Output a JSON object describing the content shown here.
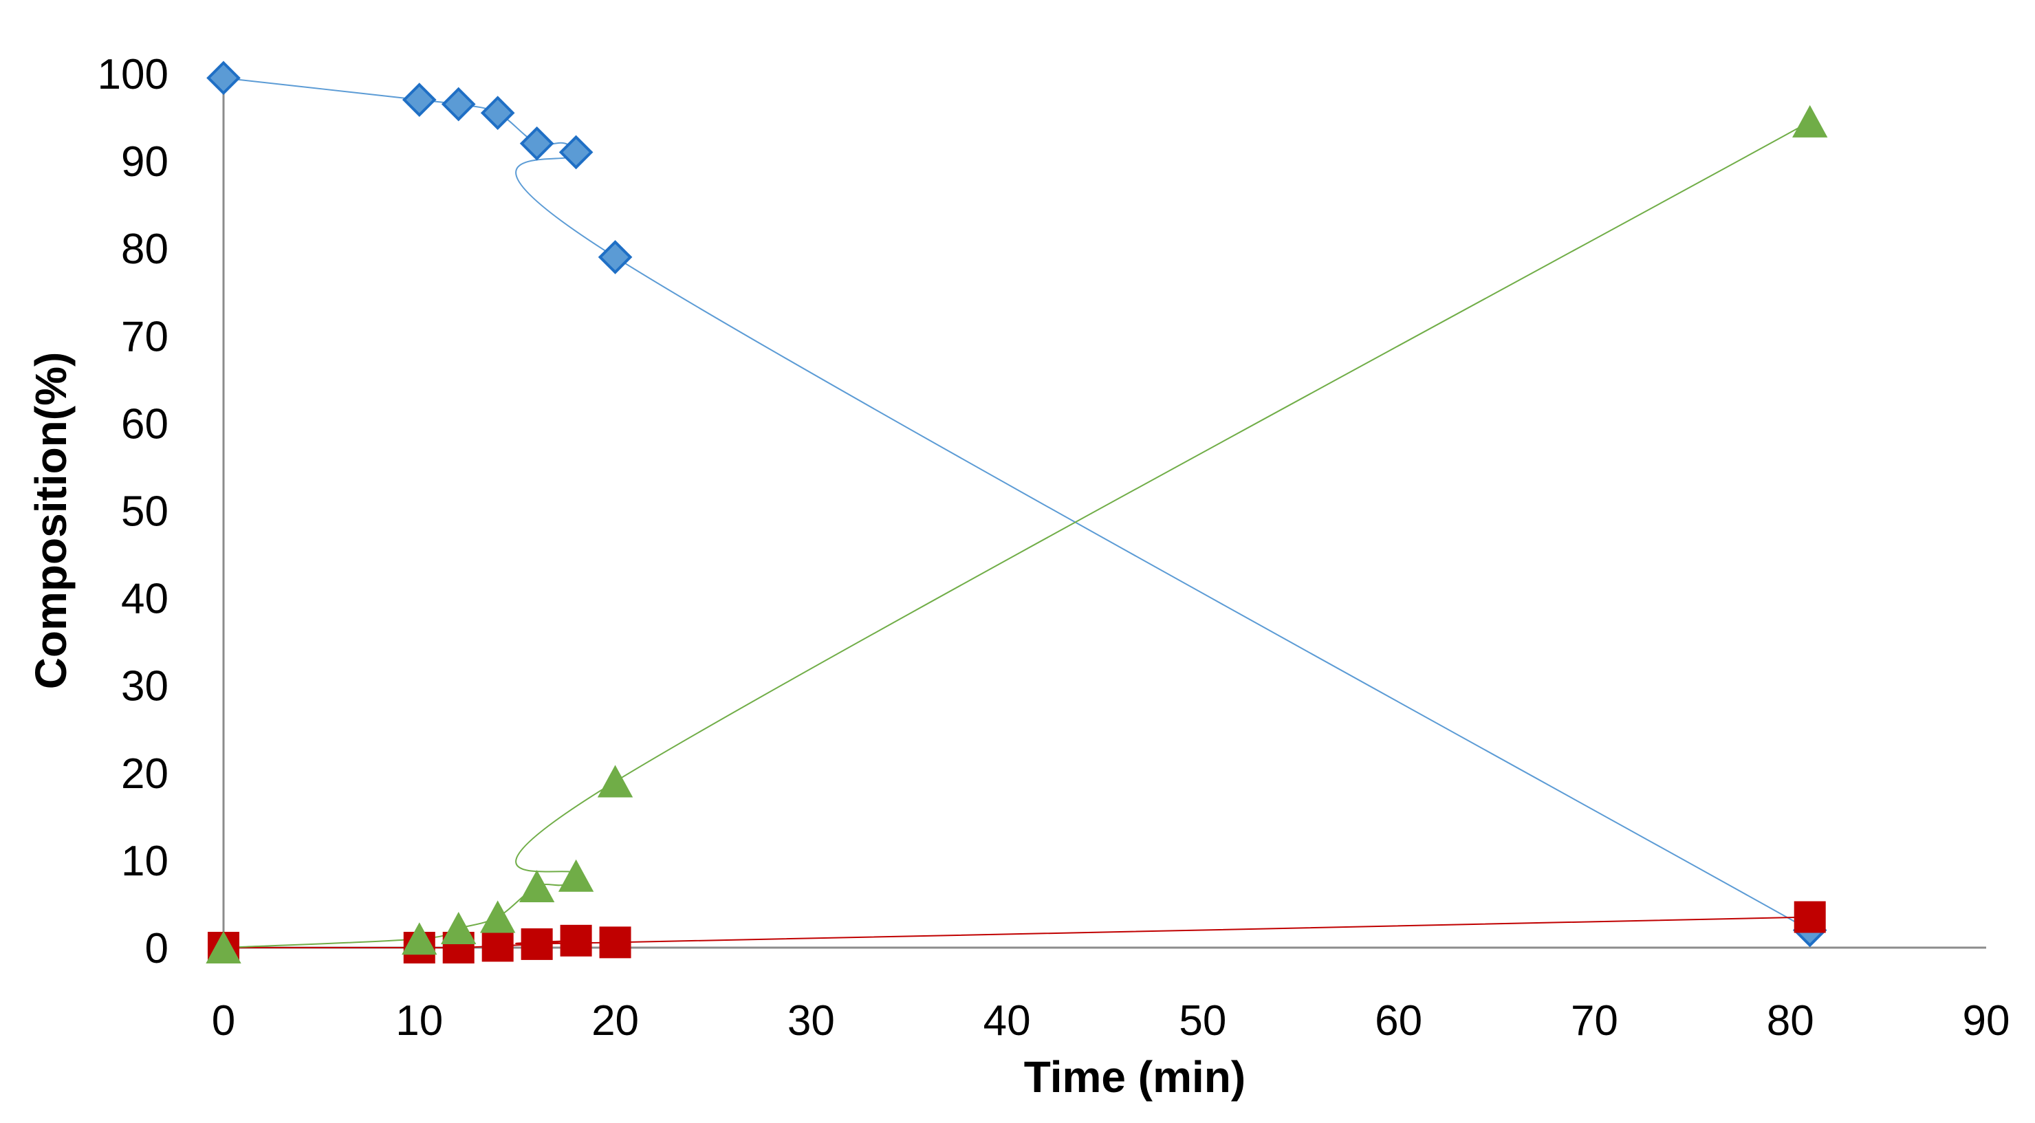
{
  "chart_data": {
    "type": "scatter",
    "title": "",
    "xlabel": "Time (min)",
    "ylabel": "Composition(%)",
    "xlim": [
      0,
      90
    ],
    "ylim": [
      0,
      100
    ],
    "xticks": [
      0,
      10,
      20,
      30,
      40,
      50,
      60,
      70,
      80,
      90
    ],
    "yticks": [
      0,
      10,
      20,
      30,
      40,
      50,
      60,
      70,
      80,
      90,
      100
    ],
    "grid": false,
    "legend": "none",
    "smooth_lines": true,
    "series": [
      {
        "marker": "diamond",
        "color": "#5B9BD5",
        "edge_color": "#1F6FC5",
        "points": [
          [
            0,
            99.5
          ],
          [
            10,
            97
          ],
          [
            12,
            96.5
          ],
          [
            14,
            95.5
          ],
          [
            16,
            92
          ],
          [
            18,
            91
          ],
          [
            20,
            79
          ],
          [
            81,
            2
          ]
        ]
      },
      {
        "marker": "square",
        "color": "#C00000",
        "edge_color": "#C00000",
        "points": [
          [
            0,
            0
          ],
          [
            10,
            0
          ],
          [
            12,
            0
          ],
          [
            14,
            0.2
          ],
          [
            16,
            0.4
          ],
          [
            18,
            0.8
          ],
          [
            20,
            0.6
          ],
          [
            81,
            3.5
          ]
        ]
      },
      {
        "marker": "triangle",
        "color": "#70AD47",
        "edge_color": "#70AD47",
        "points": [
          [
            0,
            0
          ],
          [
            10,
            1
          ],
          [
            12,
            2.2
          ],
          [
            14,
            3.5
          ],
          [
            16,
            7
          ],
          [
            18,
            8.2
          ],
          [
            20,
            19
          ],
          [
            81,
            94.5
          ]
        ]
      }
    ]
  }
}
